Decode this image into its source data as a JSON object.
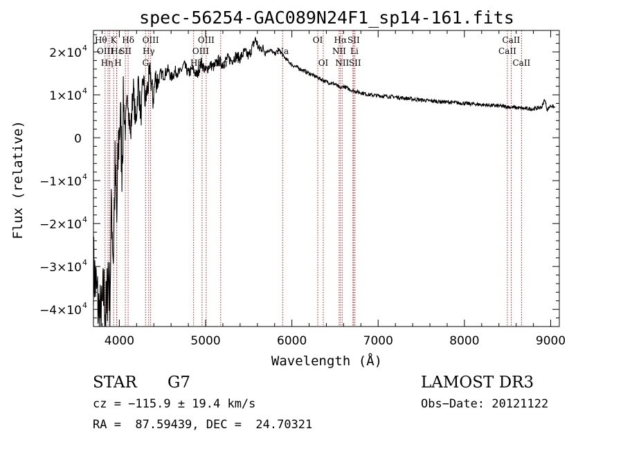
{
  "chart_data": {
    "type": "line",
    "title": "spec-56254-GAC089N24F1_sp14-161.fits",
    "xlabel": "Wavelength (Å)",
    "ylabel": "Flux (relative)",
    "xlim": [
      3700,
      9100
    ],
    "ylim": [
      -44000,
      25000
    ],
    "x_ticks": [
      {
        "value": 4000,
        "label": "4000"
      },
      {
        "value": 5000,
        "label": "5000"
      },
      {
        "value": 6000,
        "label": "6000"
      },
      {
        "value": 7000,
        "label": "7000"
      },
      {
        "value": 8000,
        "label": "8000"
      },
      {
        "value": 9000,
        "label": "9000"
      }
    ],
    "y_ticks": [
      {
        "value": 20000,
        "mant": "2×10",
        "exp": "4"
      },
      {
        "value": 10000,
        "mant": "1×10",
        "exp": "4"
      },
      {
        "value": 0,
        "mant": "0",
        "exp": ""
      },
      {
        "value": -10000,
        "mant": "−1×10",
        "exp": "4"
      },
      {
        "value": -20000,
        "mant": "−2×10",
        "exp": "4"
      },
      {
        "value": -30000,
        "mant": "−3×10",
        "exp": "4"
      },
      {
        "value": -40000,
        "mant": "−4×10",
        "exp": "4"
      }
    ],
    "series": [
      {
        "name": "spectrum",
        "x": [
          3700,
          3760,
          3790,
          3820,
          3850,
          3870,
          3890,
          3910,
          3930,
          3950,
          3970,
          3990,
          4010,
          4030,
          4050,
          4070,
          4100,
          4130,
          4160,
          4190,
          4220,
          4250,
          4280,
          4300,
          4330,
          4360,
          4390,
          4420,
          4450,
          4480,
          4520,
          4560,
          4600,
          4650,
          4700,
          4750,
          4800,
          4850,
          4900,
          4950,
          5000,
          5050,
          5100,
          5150,
          5200,
          5250,
          5300,
          5350,
          5400,
          5450,
          5500,
          5550,
          5580,
          5620,
          5650,
          5700,
          5750,
          5800,
          5850,
          5900,
          5950,
          6000,
          6100,
          6200,
          6300,
          6400,
          6500,
          6560,
          6600,
          6700,
          6800,
          6900,
          7000,
          7200,
          7400,
          7600,
          7800,
          8000,
          8200,
          8400,
          8500,
          8600,
          8700,
          8800,
          8850,
          8900,
          8930,
          8960,
          9000,
          9050
        ],
        "y": [
          -30000,
          -40000,
          -43000,
          -36000,
          -42000,
          -30000,
          -38000,
          -15000,
          -28000,
          -8000,
          -20000,
          -2000,
          5000,
          -5000,
          8000,
          2000,
          10000,
          0,
          12000,
          3000,
          13000,
          5000,
          14000,
          8000,
          12000,
          15000,
          9000,
          14000,
          13000,
          15000,
          14500,
          16000,
          14000,
          15500,
          15000,
          17000,
          15000,
          16000,
          14500,
          17500,
          15500,
          17000,
          16500,
          18000,
          17000,
          18500,
          18000,
          19000,
          18500,
          20000,
          19000,
          21500,
          23000,
          20500,
          21000,
          20000,
          20500,
          19500,
          20500,
          19000,
          18000,
          17000,
          16000,
          15000,
          14000,
          13000,
          12500,
          11500,
          12000,
          11000,
          10500,
          10000,
          9800,
          9500,
          9000,
          8600,
          8300,
          8000,
          7700,
          7400,
          7200,
          7000,
          6800,
          6700,
          6900,
          7200,
          9000,
          6500,
          7500,
          7000
        ]
      }
    ],
    "lines": [
      {
        "wl": 3835,
        "label": "Hθ",
        "row": 1,
        "dx": -6
      },
      {
        "wl": 3869,
        "label": "OIII",
        "row": 2,
        "dx": -4
      },
      {
        "wl": 3889,
        "label": "Hη",
        "row": 3,
        "dx": -4
      },
      {
        "wl": 3934,
        "label": "K",
        "row": 1,
        "dx": 0
      },
      {
        "wl": 3969,
        "label": "H",
        "row": 3,
        "dx": 2
      },
      {
        "wl": 3970,
        "label": "Hε",
        "row": 2,
        "dx": 0
      },
      {
        "wl": 4070,
        "label": "SII",
        "row": 2,
        "dx": 0
      },
      {
        "wl": 4102,
        "label": "Hδ",
        "row": 1,
        "dx": 0
      },
      {
        "wl": 4304,
        "label": "G",
        "row": 3,
        "dx": 0
      },
      {
        "wl": 4340,
        "label": "Hγ",
        "row": 2,
        "dx": 0
      },
      {
        "wl": 4363,
        "label": "OIII",
        "row": 1,
        "dx": 0
      },
      {
        "wl": 4861,
        "label": "Hβ",
        "row": 3,
        "dx": 4
      },
      {
        "wl": 4959,
        "label": "OIII",
        "row": 2,
        "dx": -2
      },
      {
        "wl": 5007,
        "label": "OIII",
        "row": 1,
        "dx": 0
      },
      {
        "wl": 5175,
        "label": "Mg",
        "row": 3,
        "dx": 0
      },
      {
        "wl": 5893,
        "label": "Na",
        "row": 2,
        "dx": 0
      },
      {
        "wl": 6300,
        "label": "OI",
        "row": 1,
        "dx": 0
      },
      {
        "wl": 6364,
        "label": "OI",
        "row": 3,
        "dx": 0
      },
      {
        "wl": 6548,
        "label": "NII",
        "row": 2,
        "dx": 0
      },
      {
        "wl": 6563,
        "label": "Hα",
        "row": 1,
        "dx": 0
      },
      {
        "wl": 6583,
        "label": "NII",
        "row": 3,
        "dx": 0
      },
      {
        "wl": 6708,
        "label": "Li",
        "row": 2,
        "dx": 2
      },
      {
        "wl": 6716,
        "label": "SII",
        "row": 1,
        "dx": 0
      },
      {
        "wl": 6731,
        "label": "SII",
        "row": 3,
        "dx": 0
      },
      {
        "wl": 8498,
        "label": "CaII",
        "row": 2,
        "dx": 0
      },
      {
        "wl": 8542,
        "label": "CaII",
        "row": 1,
        "dx": 0
      },
      {
        "wl": 8662,
        "label": "CaII",
        "row": 3,
        "dx": 0
      }
    ]
  },
  "info": {
    "object_class": "STAR",
    "subclass": "G7",
    "survey": "LAMOST DR3",
    "cz": "cz = −115.9 ± 19.4 km/s",
    "obs_date": "Obs−Date: 20121122",
    "coords": "RA =  87.59439, DEC =  24.70321"
  }
}
